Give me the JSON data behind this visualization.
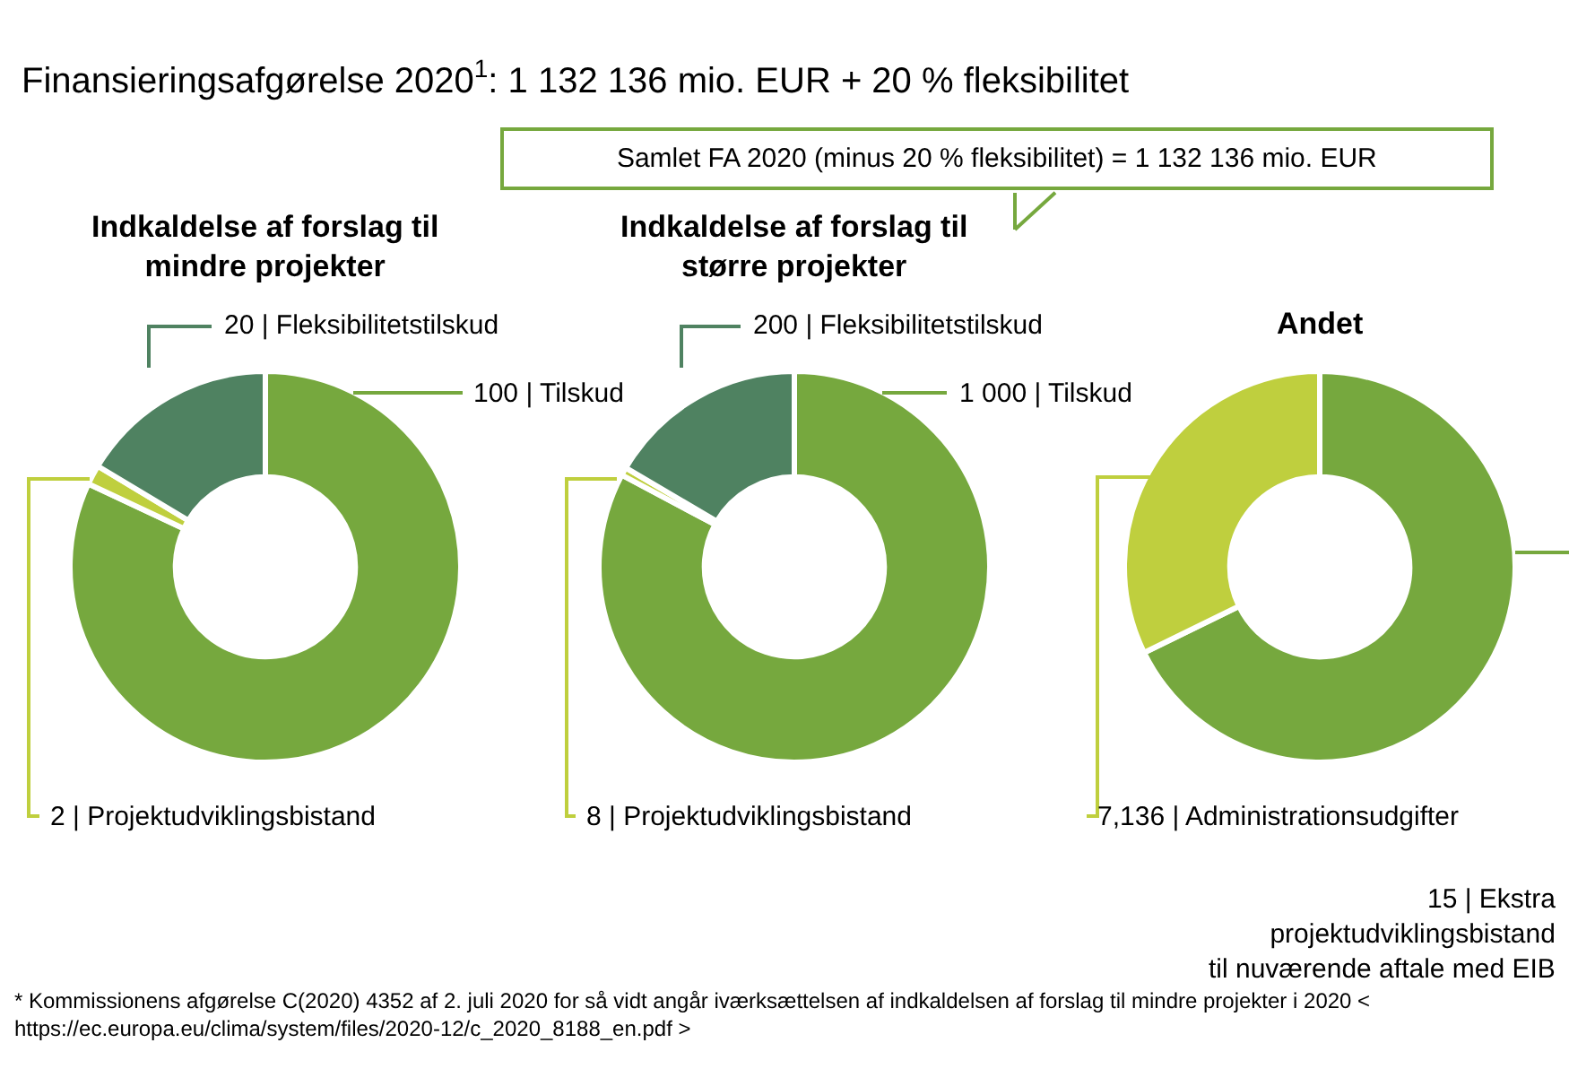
{
  "chart_data": [
    {
      "type": "donut",
      "title": "Finansieringsafgørelse 2020$^{1}$: 1 132 136 mio. EUR + 20 % fleksibilitet",
      "subtitle": "Indkaldelse af forslag til\nmindre projekter",
      "categories": [
        "100 | Tilskud",
        "2 | Projektudviklingsbistand",
        "20 | Fleksibilitetstilskud"
      ],
      "values": [
        100,
        2,
        20
      ],
      "colors": [
        "#76a83e",
        "#bfcf3e",
        "#4f8261"
      ],
      "annotations": [
        "Samlet FA 2020 (minus 20 % fleksibilitet) = 1 132 136 mio. EUR",
        "* Kommissionens afgørelse C(2020) 4352 af 2. juli 2020 for så vidt angår iværksættelsen af indkaldelsen af forslag til mindre projekter i 2020 <\nhttps://ec.europa.eu/clima/system/files/2020-12/c_2020_8188_en.pdf >"
      ]
    },
    {
      "type": "donut",
      "subtitle": "Indkaldelse af forslag til\nstørre projekter",
      "categories": [
        "1 000 | Tilskud",
        "8 | Projektudviklingsbistand",
        "200 | Fleksibilitetstilskud"
      ],
      "values": [
        1000,
        8,
        200
      ],
      "colors": [
        "#76a83e",
        "#bfcf3e",
        "#4f8261"
      ]
    },
    {
      "type": "donut",
      "subtitle": "Andet",
      "categories": [
        "15 | Ekstra\nprojektudviklingsbistand\ntil nuværende aftale med EIB",
        "7,136 | Administrationsudgifter"
      ],
      "values": [
        15,
        7.136
      ],
      "colors": [
        "#76a83e",
        "#bfcf3e"
      ]
    }
  ]
}
